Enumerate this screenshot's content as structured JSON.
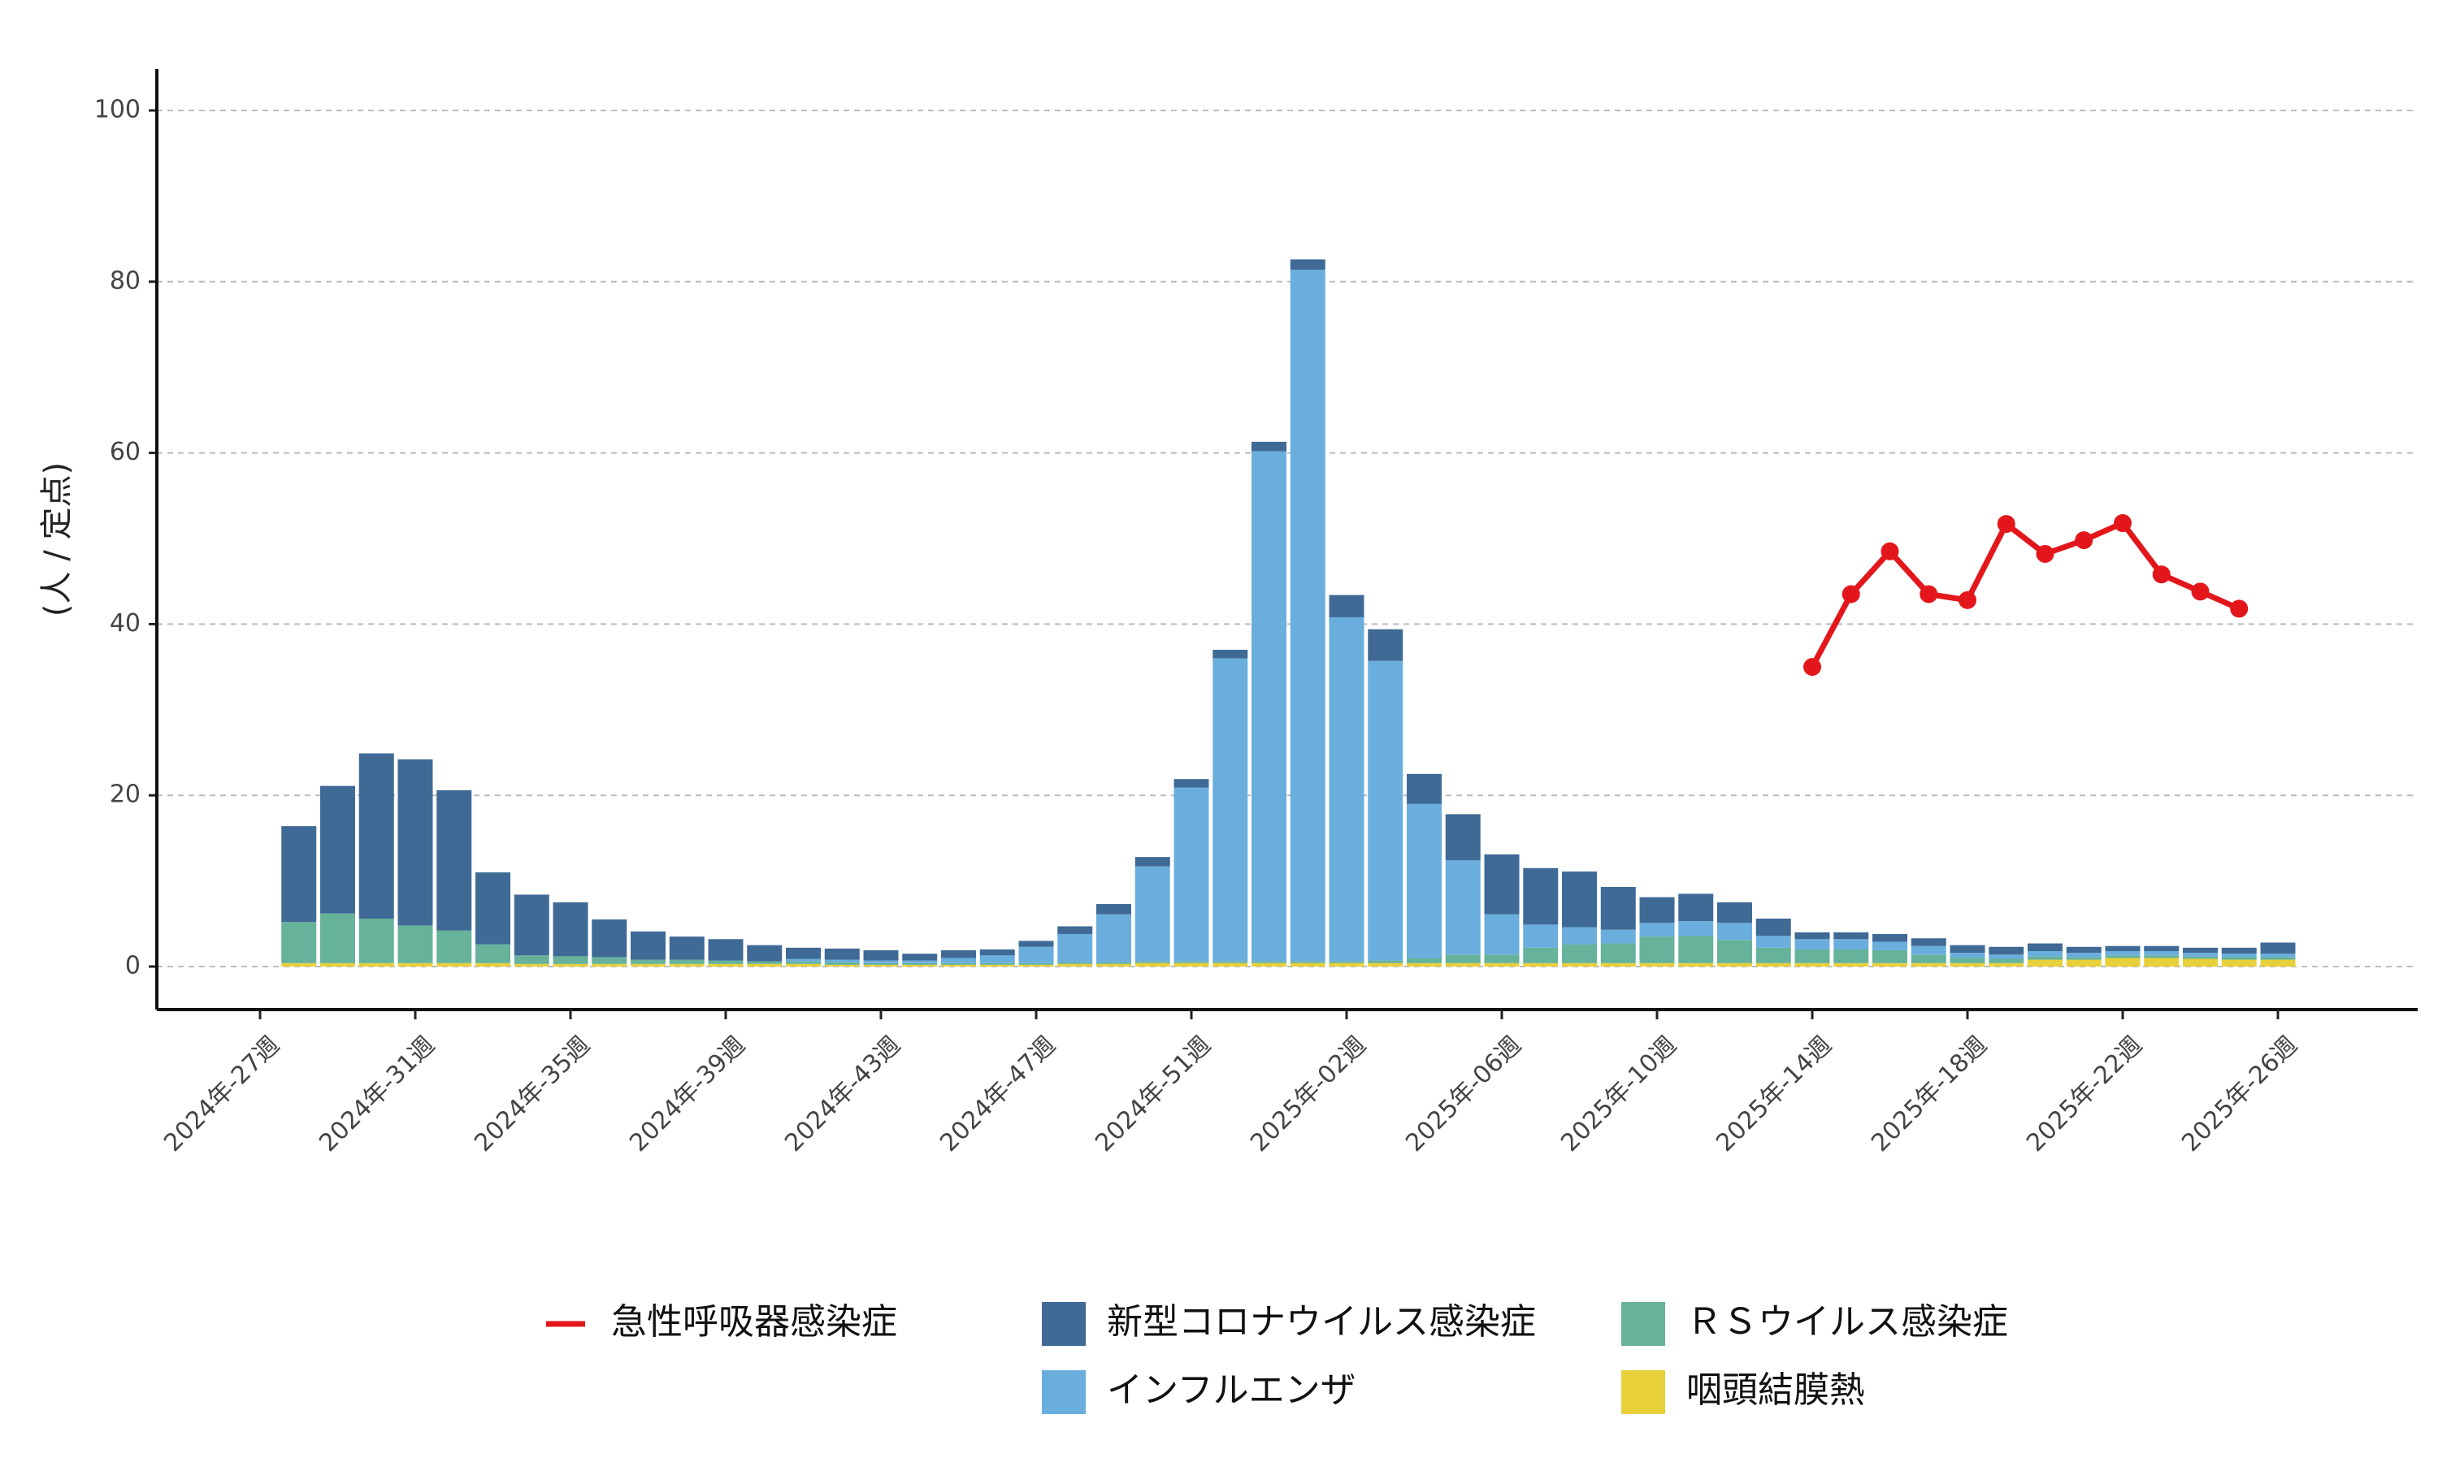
{
  "chart_data": {
    "type": "bar",
    "stacked": true,
    "ylabel": "(人 / 定点)",
    "xlabel": "",
    "ylim": [
      -5,
      105
    ],
    "yticks": [
      0,
      20,
      40,
      60,
      80,
      100
    ],
    "grid": "horizontal dashed",
    "legend_position": "bottom",
    "x_tick_labels": [
      "2024年-27週",
      "2024年-31週",
      "2024年-35週",
      "2024年-39週",
      "2024年-43週",
      "2024年-47週",
      "2024年-51週",
      "2025年-02週",
      "2025年-06週",
      "2025年-10週",
      "2025年-14週",
      "2025年-18週",
      "2025年-22週",
      "2025年-26週"
    ],
    "categories": [
      "2024-28",
      "2024-29",
      "2024-30",
      "2024-31",
      "2024-32",
      "2024-33",
      "2024-34",
      "2024-35",
      "2024-36",
      "2024-37",
      "2024-38",
      "2024-39",
      "2024-40",
      "2024-41",
      "2024-42",
      "2024-43",
      "2024-44",
      "2024-45",
      "2024-46",
      "2024-47",
      "2024-48",
      "2024-49",
      "2024-50",
      "2024-51",
      "2024-52",
      "2025-01",
      "2025-02",
      "2025-03",
      "2025-04",
      "2025-05",
      "2025-06",
      "2025-07",
      "2025-08",
      "2025-09",
      "2025-10",
      "2025-11",
      "2025-12",
      "2025-13",
      "2025-14",
      "2025-15",
      "2025-16",
      "2025-17",
      "2025-18",
      "2025-19",
      "2025-20",
      "2025-21",
      "2025-22",
      "2025-23",
      "2025-24",
      "2025-25",
      "2025-26",
      "2025-27"
    ],
    "series": [
      {
        "name": "咽頭結膜熱",
        "color": "#E8D03A",
        "values": [
          0.4,
          0.4,
          0.4,
          0.4,
          0.4,
          0.4,
          0.3,
          0.3,
          0.3,
          0.3,
          0.3,
          0.3,
          0.3,
          0.3,
          0.2,
          0.2,
          0.2,
          0.2,
          0.2,
          0.2,
          0.3,
          0.3,
          0.4,
          0.4,
          0.4,
          0.4,
          0.4,
          0.4,
          0.4,
          0.4,
          0.4,
          0.4,
          0.4,
          0.4,
          0.4,
          0.4,
          0.4,
          0.4,
          0.4,
          0.4,
          0.4,
          0.4,
          0.4,
          0.4,
          0.4,
          0.8,
          0.8,
          1.0,
          1.0,
          0.9,
          0.8,
          0.8
        ]
      },
      {
        "name": "ＲＳウイルス感染症",
        "color": "#66B29A",
        "values": [
          4.8,
          5.8,
          5.2,
          4.4,
          3.8,
          2.2,
          1.0,
          0.9,
          0.8,
          0.5,
          0.5,
          0.4,
          0.3,
          0.3,
          0.3,
          0.2,
          0.2,
          0.2,
          0.2,
          0.2,
          0.2,
          0.2,
          0.2,
          0.2,
          0.2,
          0.2,
          0.2,
          0.2,
          0.3,
          0.6,
          1.0,
          1.0,
          1.8,
          2.2,
          2.3,
          3.1,
          3.2,
          2.7,
          1.8,
          1.6,
          1.6,
          1.5,
          1.0,
          0.6,
          0.5,
          0.4,
          0.3,
          0.3,
          0.3,
          0.3,
          0.3,
          0.3
        ]
      },
      {
        "name": "インフルエンザ",
        "color": "#6AAEDE",
        "values": [
          0,
          0,
          0,
          0,
          0,
          0,
          0,
          0,
          0,
          0,
          0,
          0,
          0,
          0.3,
          0.3,
          0.3,
          0.3,
          0.6,
          0.9,
          1.9,
          3.3,
          5.6,
          11.1,
          20.3,
          35.4,
          59.6,
          80.8,
          40.2,
          35.0,
          18.0,
          11.0,
          4.7,
          2.7,
          2.0,
          1.6,
          1.6,
          1.7,
          2.0,
          1.4,
          1.2,
          1.2,
          1.0,
          1.0,
          0.6,
          0.5,
          0.6,
          0.5,
          0.5,
          0.5,
          0.4,
          0.4,
          0.4
        ]
      },
      {
        "name": "新型コロナウイルス感染症",
        "color": "#3F6A96",
        "values": [
          11.2,
          14.9,
          19.3,
          19.4,
          16.4,
          8.4,
          7.1,
          6.3,
          4.4,
          3.3,
          2.7,
          2.5,
          1.9,
          1.3,
          1.3,
          1.2,
          0.8,
          0.9,
          0.7,
          0.7,
          0.9,
          1.2,
          1.1,
          1.0,
          1.0,
          1.1,
          1.2,
          2.6,
          3.7,
          3.5,
          5.4,
          7.0,
          6.6,
          6.5,
          5.0,
          3.0,
          3.2,
          2.4,
          2.0,
          0.8,
          0.8,
          0.9,
          0.9,
          0.9,
          0.9,
          0.9,
          0.7,
          0.6,
          0.6,
          0.6,
          0.7,
          1.3
        ]
      }
    ],
    "line_series": {
      "name": "急性呼吸器感染症",
      "color": "#E3171B",
      "categories": [
        "2025-15",
        "2025-16",
        "2025-17",
        "2025-18",
        "2025-19",
        "2025-20",
        "2025-21",
        "2025-22",
        "2025-23",
        "2025-24",
        "2025-25",
        "2025-26"
      ],
      "values": [
        35.0,
        43.5,
        48.5,
        43.5,
        42.8,
        51.7,
        48.2,
        49.8,
        51.8,
        45.8,
        43.8,
        41.8
      ]
    }
  }
}
